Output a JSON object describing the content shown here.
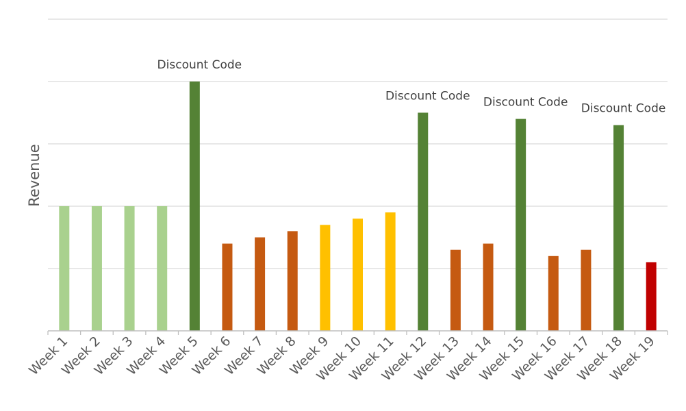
{
  "chart_data": {
    "type": "bar",
    "ylabel": "Revenue",
    "xlabel": "",
    "categories": [
      "Week 1",
      "Week 2",
      "Week 3",
      "Week 4",
      "Week 5",
      "Week 6",
      "Week 7",
      "Week 8",
      "Week 9",
      "Week 10",
      "Week 11",
      "Week 12",
      "Week 13",
      "Week 14",
      "Week 15",
      "Week 16",
      "Week 17",
      "Week 18",
      "Week 19"
    ],
    "values": [
      2.0,
      2.0,
      2.0,
      2.0,
      4.0,
      1.4,
      1.5,
      1.6,
      1.7,
      1.8,
      1.9,
      3.5,
      1.3,
      1.4,
      3.4,
      1.2,
      1.3,
      3.3,
      1.1
    ],
    "bar_colors": [
      "#a9d18e",
      "#a9d18e",
      "#a9d18e",
      "#a9d18e",
      "#548235",
      "#c55a11",
      "#c55a11",
      "#c55a11",
      "#ffc000",
      "#ffc000",
      "#ffc000",
      "#548235",
      "#c55a11",
      "#c55a11",
      "#548235",
      "#c55a11",
      "#c55a11",
      "#548235",
      "#c00000"
    ],
    "ylim": [
      0,
      5
    ],
    "grid": true,
    "y_tick_labels_shown": false,
    "annotations": [
      {
        "category": "Week 5",
        "text": "Discount Code"
      },
      {
        "category": "Week 12",
        "text": "Discount Code"
      },
      {
        "category": "Week 15",
        "text": "Discount Code"
      },
      {
        "category": "Week 18",
        "text": "Discount Code"
      }
    ],
    "colors": {
      "grid": "#d9d9d9",
      "axis": "#bfbfbf"
    }
  }
}
